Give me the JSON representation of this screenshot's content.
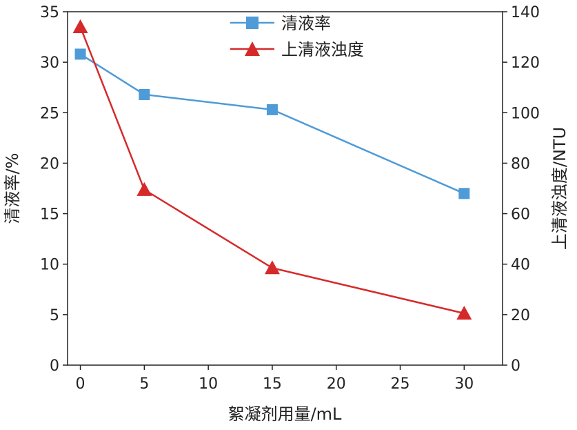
{
  "chart_data": {
    "type": "line",
    "xlabel": "絮凝剂用量/mL",
    "ylabel_left": "清液率/%",
    "ylabel_right": "上清液浊度/NTU",
    "xlim": [
      -1,
      33
    ],
    "ylim_left": [
      0,
      35
    ],
    "ylim_right": [
      0,
      140
    ],
    "x_ticks": [
      0,
      5,
      10,
      15,
      20,
      25,
      30
    ],
    "y_left_ticks": [
      0,
      5,
      10,
      15,
      20,
      25,
      30,
      35
    ],
    "y_right_ticks": [
      0,
      20,
      40,
      60,
      80,
      100,
      120,
      140
    ],
    "grid": false,
    "legend_position": "top-center",
    "series": [
      {
        "name": "清液率",
        "axis": "left",
        "marker": "square",
        "color": "#4e9bd8",
        "x": [
          0,
          5,
          15,
          30
        ],
        "y": [
          30.8,
          26.8,
          25.3,
          17.0
        ]
      },
      {
        "name": "上清液浊度",
        "axis": "right",
        "marker": "triangle",
        "color": "#d62a2a",
        "x": [
          0,
          5,
          15,
          30
        ],
        "y": [
          134,
          69.5,
          38.5,
          20.5
        ]
      }
    ]
  }
}
